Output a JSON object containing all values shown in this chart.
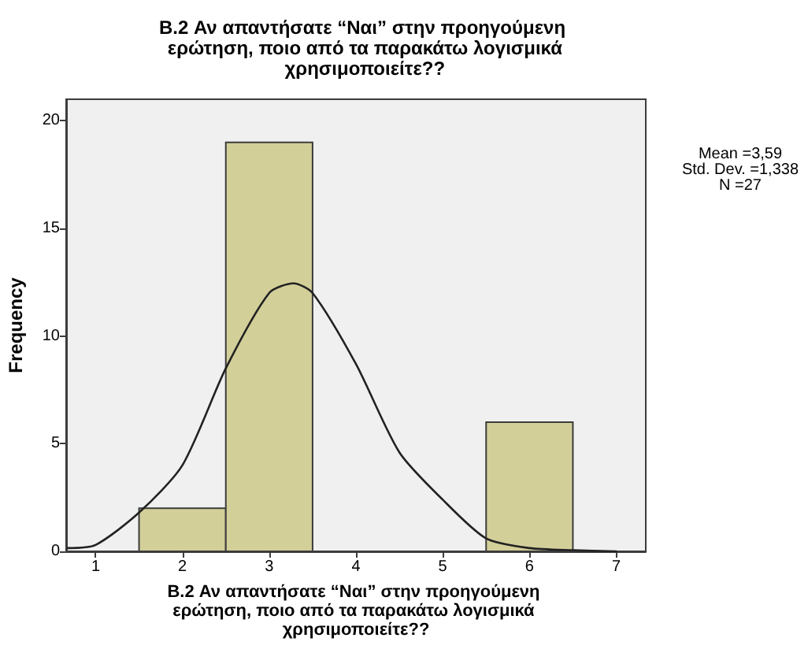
{
  "chart_data": {
    "type": "histogram",
    "title": "B.2 Αν απαντήσατε “Ναι” στην προηγούμενη ερώτηση, ποιο από τα παρακάτω λογισμικά χρησιμοποιείτε??",
    "xlabel": "B.2 Αν απαντήσατε “Ναι” στην προηγούμενη ερώτηση, ποιο από τα παρακάτω λογισμικά χρησιμοποιείτε??",
    "ylabel": "Frequency",
    "bins": [
      1.5,
      2.5,
      3.5,
      4.5,
      5.5,
      6.5
    ],
    "values": [
      2,
      19,
      0,
      0,
      6
    ],
    "color": "#d3cf99",
    "xlim": [
      0.66,
      7.34
    ],
    "xticks": [
      1,
      2,
      3,
      4,
      5,
      6,
      7
    ],
    "ylim": [
      0,
      21
    ],
    "yticks": [
      0,
      5,
      10,
      15,
      20
    ],
    "grid": false,
    "annotations": [
      "Mean =3,59",
      "Std. Dev. =1,338",
      "N =27"
    ],
    "series": [
      {
        "type": "line",
        "color": "#222222",
        "x": [
          0.68,
          1.0,
          1.5,
          2.0,
          2.5,
          3.0,
          3.28,
          3.5,
          4.0,
          4.5,
          5.0,
          5.5,
          6.0,
          6.5,
          7.0
        ],
        "values": [
          0.15,
          0.3,
          1.8,
          4.0,
          8.5,
          12.0,
          12.45,
          12.0,
          8.7,
          4.6,
          2.4,
          0.6,
          0.15,
          0.05,
          0.0
        ]
      }
    ]
  }
}
